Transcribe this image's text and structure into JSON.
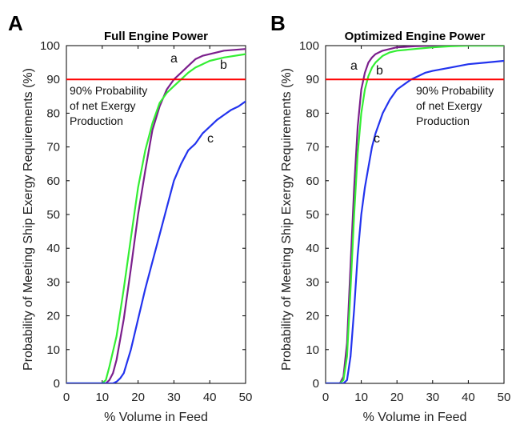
{
  "chart_data": [
    {
      "type": "line",
      "panel_letter": "A",
      "title": "Full Engine Power",
      "xlabel": "% Volume in Feed",
      "ylabel": "Probability of Meeting Ship Exergy Requirements (%)",
      "xlim": [
        0,
        50
      ],
      "ylim": [
        0,
        100
      ],
      "xticks": [
        0,
        10,
        20,
        30,
        40,
        50
      ],
      "yticks": [
        0,
        10,
        20,
        30,
        40,
        50,
        60,
        70,
        80,
        90,
        100
      ],
      "grid": false,
      "threshold": {
        "value": 90,
        "color": "#ff0000"
      },
      "annotation": [
        "90% Probability",
        "of net Exergy",
        "Production"
      ],
      "series": [
        {
          "label": "a",
          "color": "#7b1f8c",
          "x": [
            0,
            11,
            12,
            13,
            14,
            16,
            18,
            20,
            22,
            24,
            26,
            28,
            30,
            32,
            34,
            36,
            38,
            40,
            44,
            50
          ],
          "y": [
            0,
            0,
            1,
            3,
            7,
            19,
            34,
            50,
            63,
            75,
            82,
            87,
            90,
            92,
            94,
            96,
            97,
            97.5,
            98.5,
            99
          ]
        },
        {
          "label": "b",
          "color": "#33ee33",
          "x": [
            0,
            10,
            11,
            12,
            14,
            16,
            18,
            20,
            22,
            24,
            26,
            28,
            30,
            32,
            34,
            36,
            38,
            40,
            44,
            50
          ],
          "y": [
            0,
            0,
            1,
            5,
            14,
            28,
            43,
            58,
            69,
            77,
            83,
            86,
            88,
            90,
            92,
            93.5,
            94.5,
            95.5,
            96.5,
            97.5
          ]
        },
        {
          "label": "c",
          "color": "#2233ee",
          "x": [
            0,
            13,
            14,
            15,
            16,
            18,
            20,
            22,
            24,
            26,
            28,
            30,
            32,
            34,
            36,
            38,
            40,
            42,
            44,
            46,
            48,
            50
          ],
          "y": [
            0,
            0,
            0.5,
            1.5,
            3,
            10,
            19,
            28,
            36,
            44,
            52,
            60,
            65,
            69,
            71,
            74,
            76,
            78,
            79.5,
            81,
            82,
            83.5
          ]
        }
      ]
    },
    {
      "type": "line",
      "panel_letter": "B",
      "title": "Optimized Engine Power",
      "xlabel": "% Volume in Feed",
      "ylabel": "Probability of Meeting Ship Exergy Requirements (%)",
      "xlim": [
        0,
        50
      ],
      "ylim": [
        0,
        100
      ],
      "xticks": [
        0,
        10,
        20,
        30,
        40,
        50
      ],
      "yticks": [
        0,
        10,
        20,
        30,
        40,
        50,
        60,
        70,
        80,
        90,
        100
      ],
      "grid": false,
      "threshold": {
        "value": 90,
        "color": "#ff0000"
      },
      "annotation": [
        "90% Probability",
        "of net Exergy",
        "Production"
      ],
      "series": [
        {
          "label": "a",
          "color": "#7b1f8c",
          "x": [
            0,
            4,
            5,
            6,
            7,
            8,
            9,
            10,
            11,
            12,
            13,
            14,
            15,
            16,
            18,
            20,
            25,
            30,
            40,
            50
          ],
          "y": [
            0,
            0,
            2,
            12,
            35,
            58,
            76,
            87,
            92,
            95,
            96.5,
            97.5,
            98,
            98.5,
            99,
            99.5,
            99.8,
            100,
            100,
            100
          ]
        },
        {
          "label": "b",
          "color": "#33ee33",
          "x": [
            0,
            4,
            5,
            6,
            7,
            8,
            9,
            10,
            11,
            12,
            13,
            14,
            16,
            18,
            20,
            25,
            30,
            35,
            40,
            50
          ],
          "y": [
            0,
            0,
            1,
            8,
            28,
            50,
            68,
            80,
            87,
            91,
            93.5,
            95,
            97,
            98,
            98.5,
            99,
            99.5,
            99.8,
            100,
            100
          ]
        },
        {
          "label": "c",
          "color": "#2233ee",
          "x": [
            0,
            5,
            6,
            7,
            8,
            9,
            10,
            11,
            12,
            13,
            14,
            15,
            16,
            18,
            20,
            22,
            24,
            26,
            28,
            30,
            35,
            40,
            45,
            50
          ],
          "y": [
            0,
            0,
            1,
            8,
            22,
            38,
            50,
            58,
            64,
            70,
            74,
            77,
            80,
            84,
            87,
            88.5,
            90,
            91,
            92,
            92.5,
            93.5,
            94.5,
            95,
            95.5
          ]
        }
      ]
    }
  ]
}
